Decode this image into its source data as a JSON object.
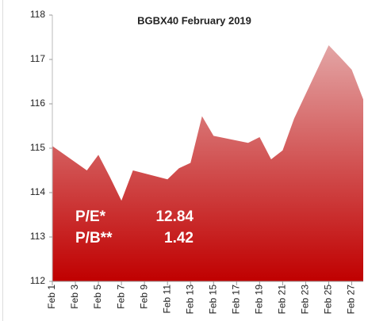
{
  "chart_data": {
    "type": "area",
    "title": "BGBX40 February 2019",
    "x": [
      1,
      4,
      5,
      6,
      7,
      8,
      11,
      12,
      13,
      14,
      15,
      18,
      19,
      20,
      21,
      22,
      25,
      26,
      27,
      28
    ],
    "series": [
      {
        "color": "#c00000",
        "values": [
          115.05,
          114.5,
          114.85,
          114.35,
          113.82,
          114.5,
          114.3,
          114.55,
          114.67,
          115.72,
          115.28,
          115.12,
          115.25,
          114.75,
          114.95,
          115.67,
          117.32,
          117.05,
          116.77,
          116.1
        ]
      }
    ],
    "xlim": [
      1,
      28
    ],
    "xticks": [
      {
        "value": 1,
        "label": "Feb 1"
      },
      {
        "value": 3,
        "label": "Feb 3"
      },
      {
        "value": 5,
        "label": "Feb 5"
      },
      {
        "value": 7,
        "label": "Feb 7"
      },
      {
        "value": 9,
        "label": "Feb 9"
      },
      {
        "value": 11,
        "label": "Feb 11"
      },
      {
        "value": 13,
        "label": "Feb 13"
      },
      {
        "value": 15,
        "label": "Feb 15"
      },
      {
        "value": 17,
        "label": "Feb 17"
      },
      {
        "value": 19,
        "label": "Feb 19"
      },
      {
        "value": 21,
        "label": "Feb 21"
      },
      {
        "value": 23,
        "label": "Feb 23"
      },
      {
        "value": 25,
        "label": "Feb 25"
      },
      {
        "value": 27,
        "label": "Feb 27"
      }
    ],
    "ylim": [
      112,
      118
    ],
    "yticks": [
      112,
      113,
      114,
      115,
      116,
      117,
      118
    ],
    "grid": false,
    "annotations": [
      {
        "label": "P/E*",
        "value": "12.84"
      },
      {
        "label": "P/B**",
        "value": "1.42"
      }
    ]
  }
}
